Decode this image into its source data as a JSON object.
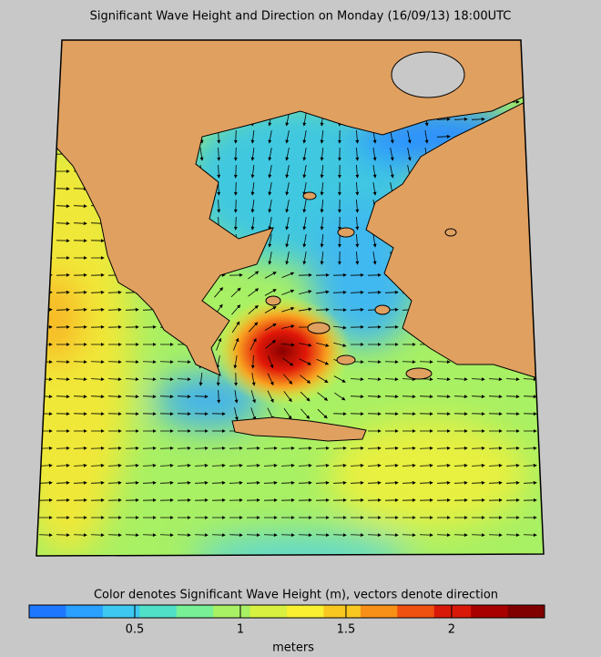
{
  "title": "Significant Wave Height and Direction on Monday (16/09/13) 18:00UTC",
  "colorbar": {
    "caption": "Color denotes Significant Wave Height (m), vectors denote direction",
    "unit": "meters",
    "range": [
      0,
      2.44
    ],
    "ticks": [
      0.5,
      1,
      1.5,
      2
    ],
    "colors": [
      "#1e78ff",
      "#2aa0ff",
      "#3cc8f0",
      "#50e0c8",
      "#78f096",
      "#a8f064",
      "#d8f040",
      "#f8f030",
      "#f8c820",
      "#f89018",
      "#f05010",
      "#d81808",
      "#a80000",
      "#800000"
    ]
  }
}
